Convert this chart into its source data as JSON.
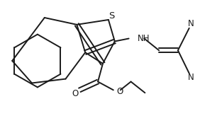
{
  "bg_color": "#ffffff",
  "line_color": "#1a1a1a",
  "line_width": 1.4,
  "font_size": 8.5,
  "figsize": [
    2.82,
    1.74
  ],
  "dpi": 100,
  "xlim": [
    0,
    282
  ],
  "ylim": [
    0,
    174
  ],
  "S_label": "S",
  "NH_label": "NH",
  "N1_label": "N",
  "N2_label": "N",
  "O1_label": "O",
  "O2_label": "O"
}
